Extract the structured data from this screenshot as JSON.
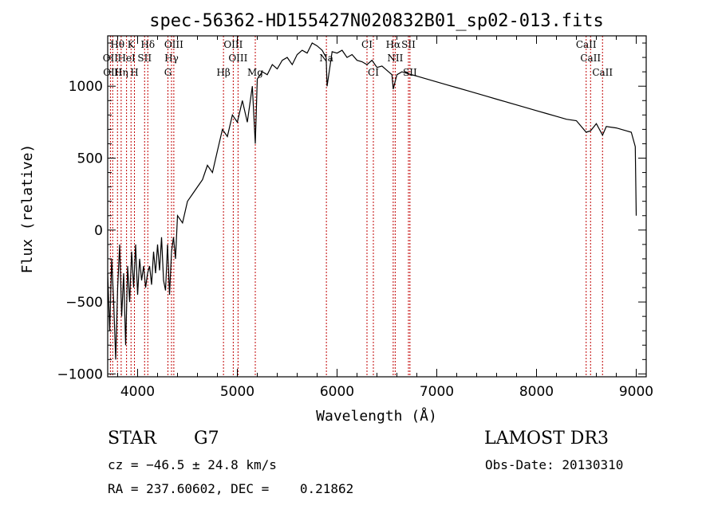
{
  "chart_data": {
    "type": "line",
    "title": "spec-56362-HD155427N020832B01_sp02-013.fits",
    "xlabel": "Wavelength (Å)",
    "ylabel": "Flux (relative)",
    "xlim": [
      3700,
      9100
    ],
    "ylim": [
      -1020,
      1350
    ],
    "xticks": [
      4000,
      5000,
      6000,
      7000,
      8000,
      9000
    ],
    "yticks": [
      -1000,
      -500,
      0,
      500,
      1000
    ],
    "xtick_labels": [
      "4000",
      "5000",
      "6000",
      "7000",
      "8000",
      "9000"
    ],
    "ytick_labels": [
      "−1000",
      "−500",
      "0",
      "500",
      "1000"
    ],
    "series": [
      {
        "name": "flux",
        "x": [
          3700,
          3720,
          3740,
          3760,
          3780,
          3800,
          3820,
          3840,
          3860,
          3880,
          3900,
          3920,
          3940,
          3960,
          3980,
          4000,
          4020,
          4040,
          4060,
          4080,
          4100,
          4120,
          4140,
          4160,
          4180,
          4200,
          4220,
          4240,
          4260,
          4280,
          4300,
          4320,
          4340,
          4360,
          4380,
          4400,
          4450,
          4500,
          4550,
          4600,
          4650,
          4700,
          4750,
          4800,
          4850,
          4900,
          4950,
          5000,
          5050,
          5100,
          5150,
          5180,
          5200,
          5250,
          5300,
          5350,
          5400,
          5450,
          5500,
          5550,
          5600,
          5650,
          5700,
          5750,
          5800,
          5850,
          5890,
          5900,
          5950,
          6000,
          6050,
          6100,
          6150,
          6200,
          6250,
          6300,
          6350,
          6400,
          6450,
          6500,
          6550,
          6563,
          6600,
          6650,
          6700,
          6750,
          6800,
          6900,
          7000,
          7100,
          7200,
          7300,
          7400,
          7500,
          7600,
          7700,
          7800,
          7900,
          8000,
          8100,
          8200,
          8300,
          8400,
          8498,
          8542,
          8600,
          8662,
          8700,
          8800,
          8900,
          8950,
          8990,
          9000
        ],
        "values": [
          -300,
          -700,
          -200,
          -500,
          -900,
          -400,
          -100,
          -600,
          -300,
          -800,
          -250,
          -500,
          -150,
          -400,
          -100,
          -450,
          -200,
          -350,
          -250,
          -400,
          -300,
          -250,
          -380,
          -150,
          -300,
          -100,
          -280,
          -50,
          -350,
          -420,
          -100,
          -450,
          -150,
          -50,
          -200,
          100,
          50,
          200,
          250,
          300,
          350,
          450,
          400,
          550,
          700,
          650,
          800,
          750,
          900,
          750,
          1000,
          600,
          1050,
          1100,
          1080,
          1150,
          1120,
          1180,
          1200,
          1150,
          1220,
          1250,
          1230,
          1300,
          1280,
          1250,
          1200,
          1000,
          1240,
          1230,
          1250,
          1200,
          1220,
          1180,
          1170,
          1150,
          1180,
          1130,
          1140,
          1110,
          1080,
          980,
          1080,
          1100,
          1090,
          1080,
          1070,
          1050,
          1030,
          1010,
          990,
          970,
          950,
          930,
          910,
          890,
          870,
          850,
          830,
          810,
          790,
          770,
          760,
          680,
          690,
          740,
          660,
          720,
          710,
          690,
          680,
          580,
          100
        ]
      }
    ],
    "lines": [
      {
        "label": "Hθ",
        "wl": 3798,
        "row": 0
      },
      {
        "label": "K",
        "wl": 3934,
        "row": 0
      },
      {
        "label": "Hδ",
        "wl": 4102,
        "row": 0
      },
      {
        "label": "OIII",
        "wl": 4363,
        "row": 0
      },
      {
        "label": "OIII",
        "wl": 4959,
        "row": 0
      },
      {
        "label": "Mg",
        "wl": 5180,
        "row": 2
      },
      {
        "label": "Na",
        "wl": 5893,
        "row": 1
      },
      {
        "label": "CI",
        "wl": 6300,
        "row": 0
      },
      {
        "label": "CI",
        "wl": 6364,
        "row": 2
      },
      {
        "label": "Hα",
        "wl": 6563,
        "row": 0
      },
      {
        "label": "NII",
        "wl": 6583,
        "row": 1
      },
      {
        "label": "SII",
        "wl": 6716,
        "row": 0
      },
      {
        "label": "SII",
        "wl": 6731,
        "row": 2
      },
      {
        "label": "OII",
        "wl": 3727,
        "row": 1
      },
      {
        "label": "HeI",
        "wl": 3889,
        "row": 1
      },
      {
        "label": "SII",
        "wl": 4070,
        "row": 1
      },
      {
        "label": "Hγ",
        "wl": 4340,
        "row": 1
      },
      {
        "label": "OIII",
        "wl": 5007,
        "row": 1
      },
      {
        "label": "OIII",
        "wl": 3750,
        "row": 2
      },
      {
        "label": "Hη",
        "wl": 3835,
        "row": 2
      },
      {
        "label": "H",
        "wl": 3968,
        "row": 2
      },
      {
        "label": "G",
        "wl": 4304,
        "row": 2
      },
      {
        "label": "Hβ",
        "wl": 4861,
        "row": 2
      },
      {
        "label": "CaII",
        "wl": 8498,
        "row": 0
      },
      {
        "label": "CaII",
        "wl": 8542,
        "row": 1
      },
      {
        "label": "CaII",
        "wl": 8662,
        "row": 2
      }
    ]
  },
  "info": {
    "class_label": "STAR",
    "subclass": "G7",
    "survey": "LAMOST DR3",
    "cz": "cz = −46.5 ± 24.8 km/s",
    "obs_date": "Obs-Date: 20130310",
    "coords": "RA = 237.60602, DEC =    0.21862"
  }
}
